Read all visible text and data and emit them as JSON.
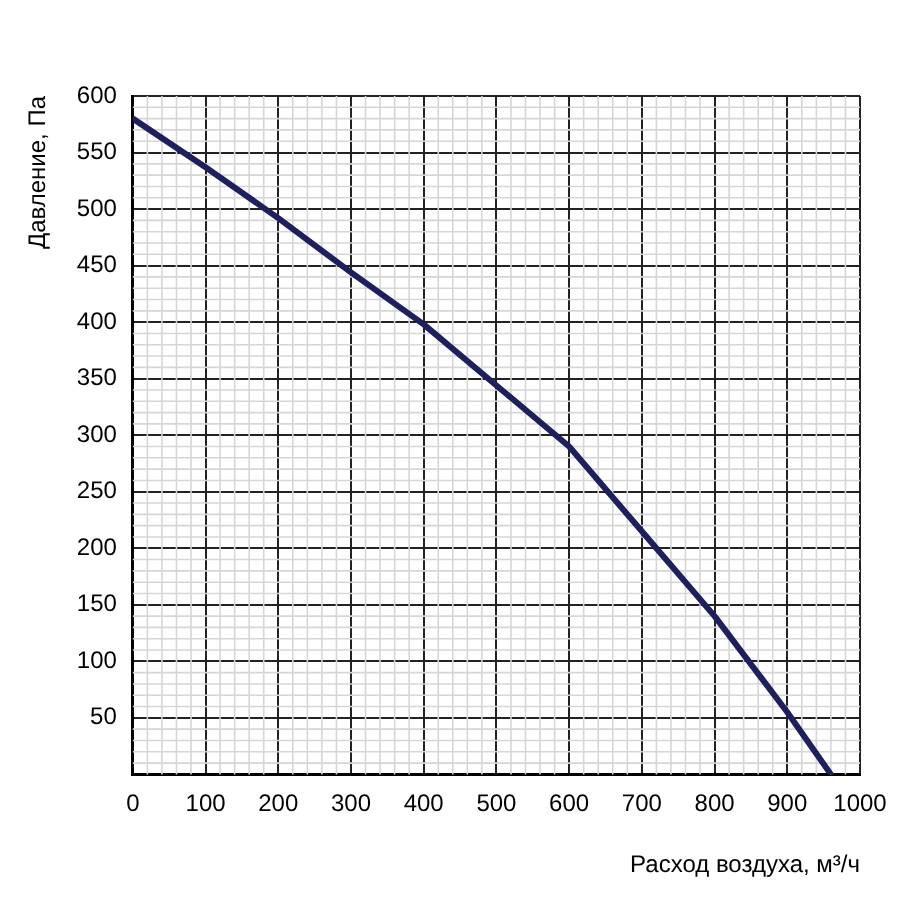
{
  "chart_data": {
    "type": "line",
    "xlabel": "Расход воздуха, м³/ч",
    "ylabel": "Давление, Па",
    "series": [
      {
        "color": "#1f1f5e",
        "x": [
          0,
          100,
          200,
          300,
          400,
          500,
          600,
          700,
          800,
          900,
          960
        ],
        "values": [
          580,
          537,
          492,
          444,
          398,
          344,
          290,
          215,
          140,
          55,
          0
        ]
      }
    ],
    "xlim": [
      0,
      1000
    ],
    "ylim": [
      0,
      600
    ],
    "xticks": [
      0,
      100,
      200,
      300,
      400,
      500,
      600,
      700,
      800,
      900,
      1000
    ],
    "yticks": [
      {
        "value": 0,
        "label": null
      },
      50,
      100,
      150,
      200,
      250,
      300,
      350,
      400,
      450,
      500,
      550,
      600
    ],
    "grid": true,
    "legend": false,
    "marker": "none",
    "line_style": "solid"
  }
}
